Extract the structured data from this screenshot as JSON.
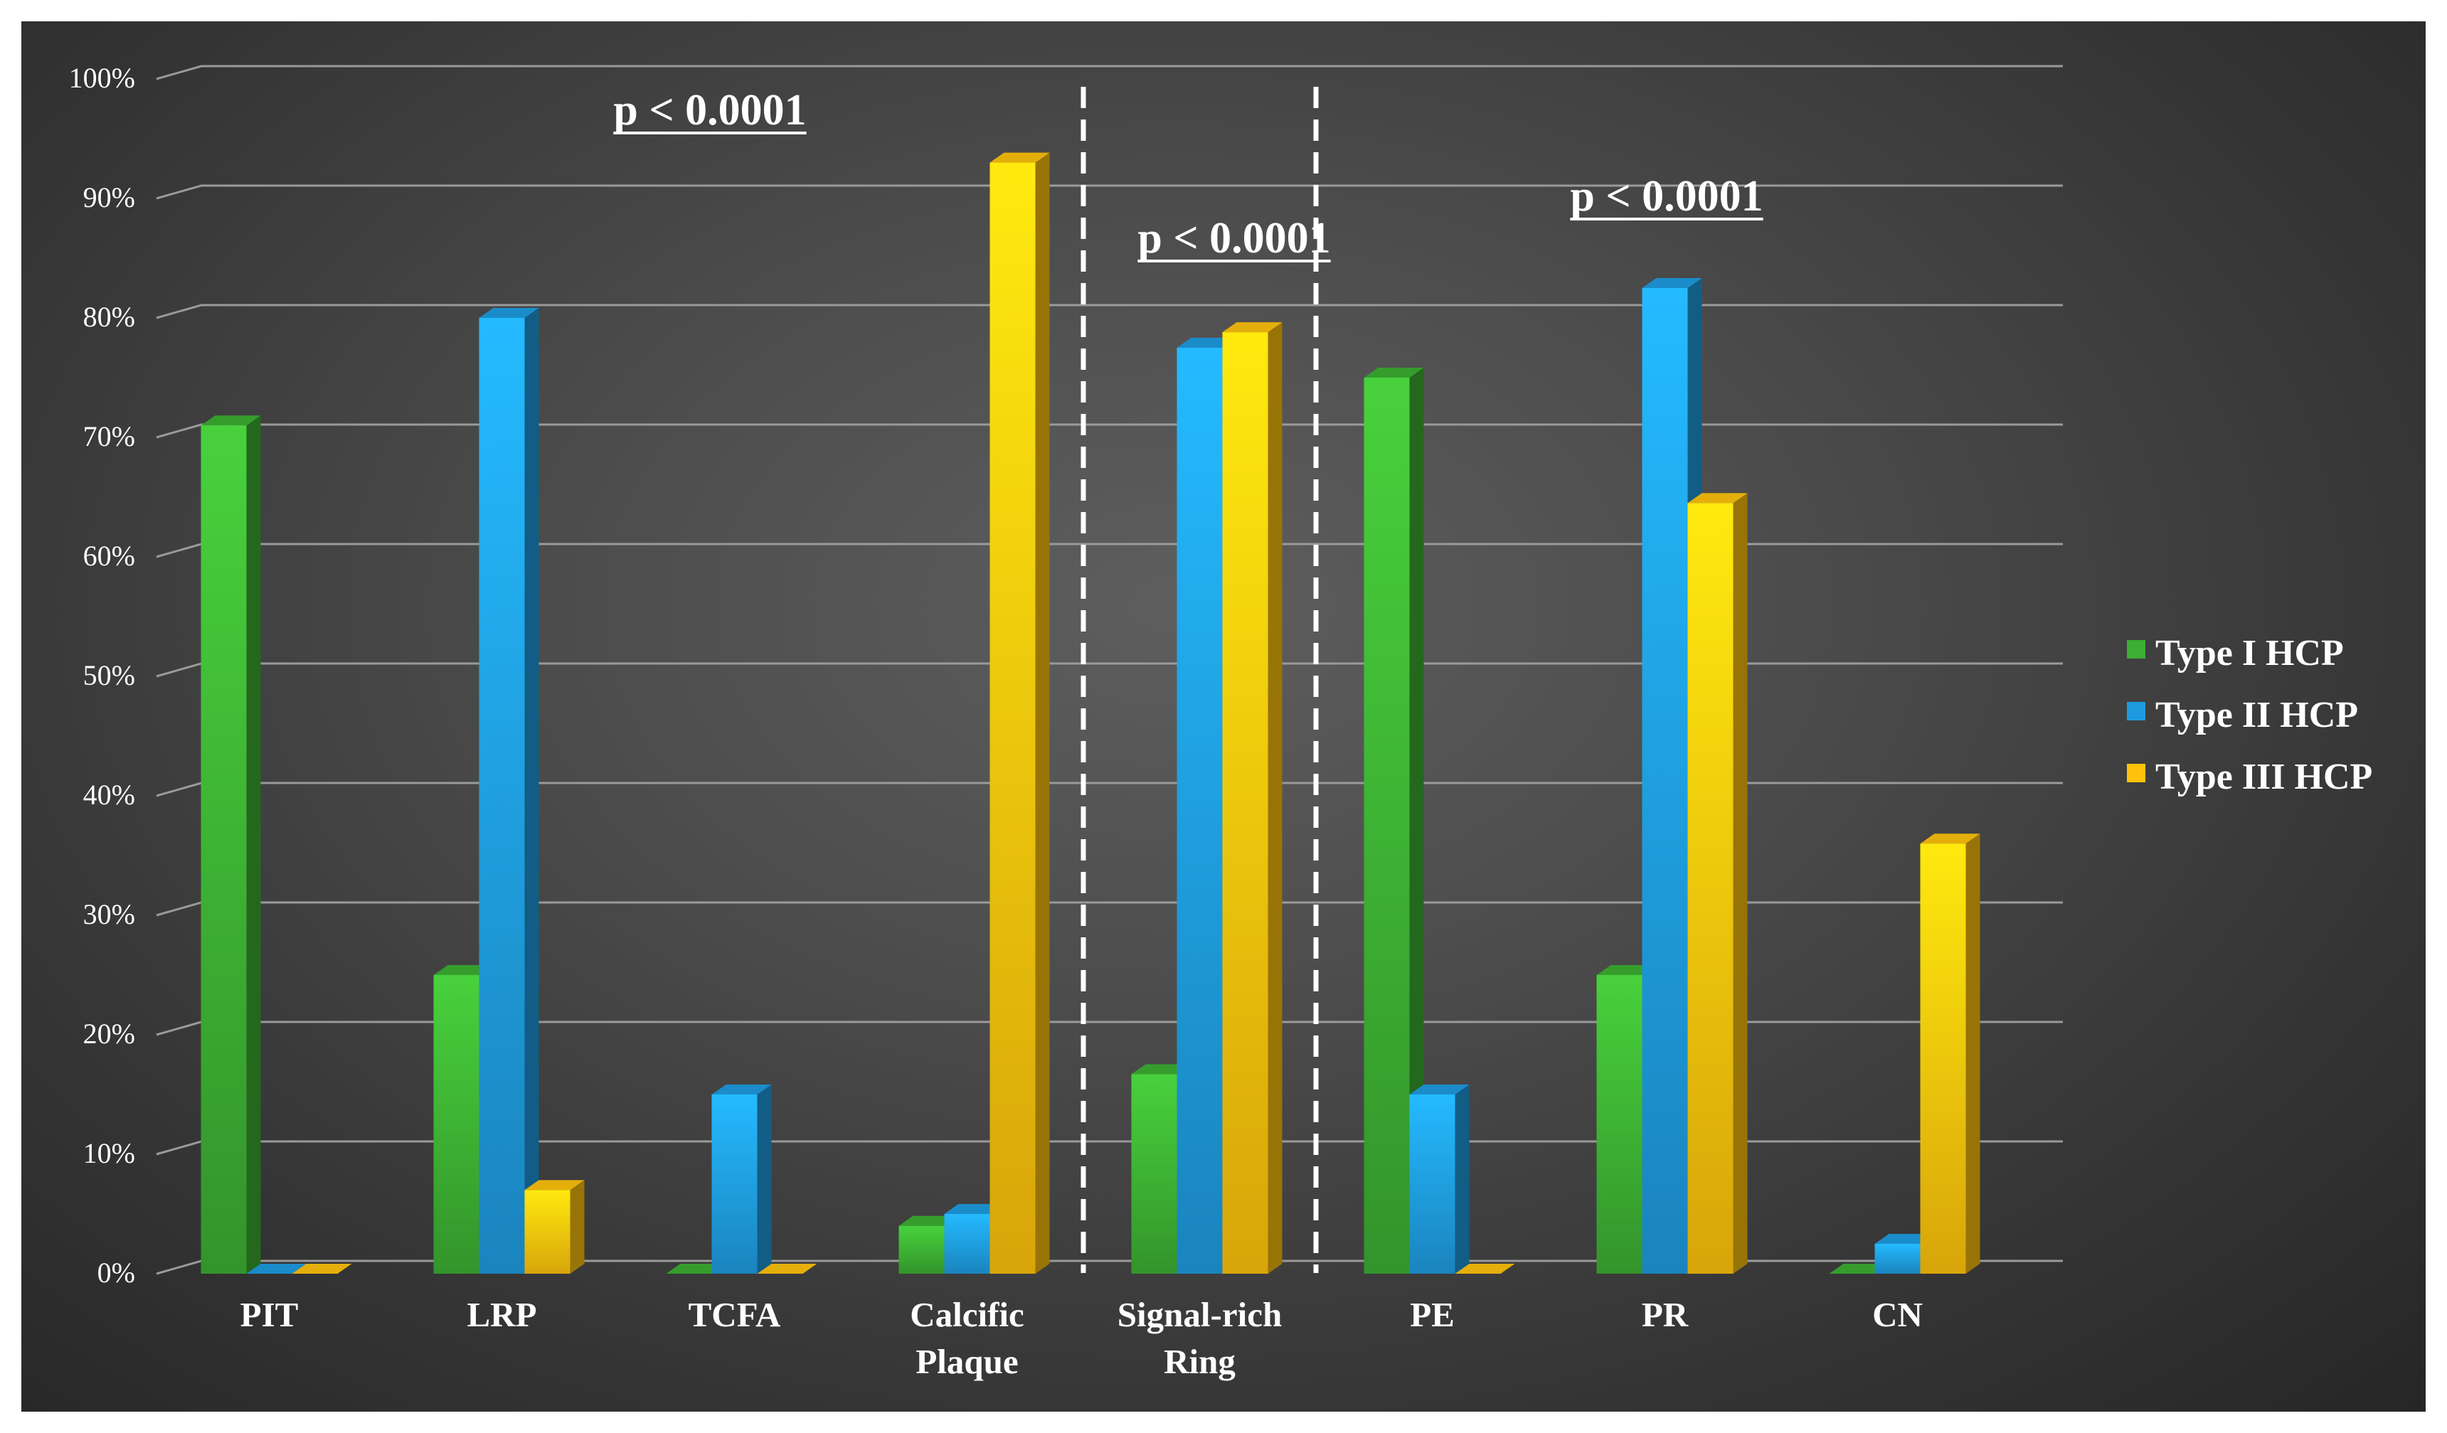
{
  "chart_data": {
    "type": "bar",
    "title": "",
    "xlabel": "",
    "ylabel": "",
    "ylim": [
      0,
      100
    ],
    "y_ticks": [
      "0%",
      "10%",
      "20%",
      "30%",
      "40%",
      "50%",
      "60%",
      "70%",
      "80%",
      "90%",
      "100%"
    ],
    "categories": [
      "PIT",
      "LRP",
      "TCFA",
      "Calcific Plaque",
      "Signal-rich Ring",
      "PE",
      "PR",
      "CN"
    ],
    "category_labels": [
      [
        "PIT"
      ],
      [
        "LRP"
      ],
      [
        "TCFA"
      ],
      [
        "Calcific",
        "Plaque"
      ],
      [
        "Signal-rich",
        "Ring"
      ],
      [
        "PE"
      ],
      [
        "PR"
      ],
      [
        "CN"
      ]
    ],
    "series": [
      {
        "name": "Type I HCP",
        "color": "#3cae32",
        "values": [
          71,
          25,
          0,
          4,
          16.7,
          75,
          25,
          0
        ]
      },
      {
        "name": "Type II HCP",
        "color": "#1e9be0",
        "values": [
          0,
          80,
          15,
          5,
          77.5,
          15,
          82.5,
          2.5
        ]
      },
      {
        "name": "Type III HCP",
        "color": "#fec20c",
        "values": [
          0,
          7,
          0,
          93,
          78.8,
          0,
          64.5,
          36
        ]
      }
    ],
    "legend_position": "right",
    "grid": true,
    "annotations": [
      "p < 0.0001",
      "p < 0.0001",
      "p < 0.0001"
    ]
  },
  "colors": {
    "grid": "#9a9a9a",
    "divider": "#ffffff"
  }
}
